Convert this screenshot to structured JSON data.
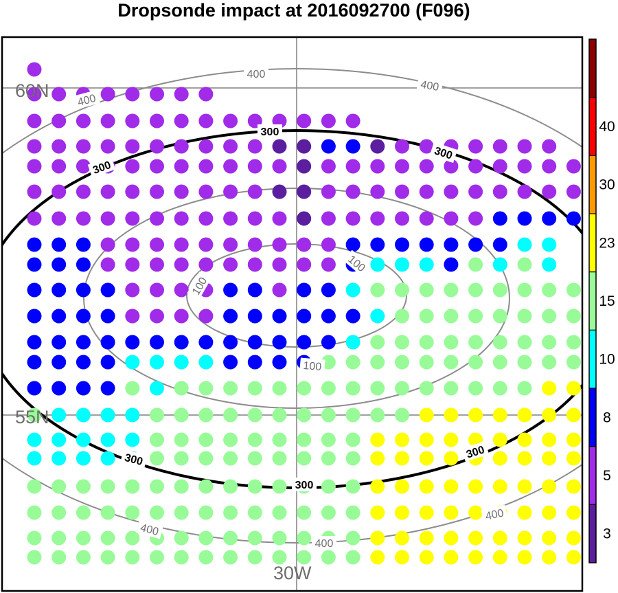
{
  "chart_data": {
    "type": "scatter",
    "title": "Dropsonde impact at 2016092700 (F096)",
    "grid_labels": {
      "lat_60": "60N",
      "lat_55": "55N",
      "lon_30": "30W"
    },
    "contours": [
      {
        "level": "100",
        "color": "#8c8c8c",
        "labels": [
          "100",
          "100",
          "100"
        ]
      },
      {
        "level": "200",
        "color": "#8c8c8c",
        "labels": []
      },
      {
        "level": "300",
        "color": "#000000",
        "labels": [
          "300",
          "300",
          "300",
          "300",
          "300",
          "300"
        ]
      },
      {
        "level": "400",
        "color": "#8c8c8c",
        "labels": [
          "400",
          "400",
          "400",
          "400",
          "400",
          "400"
        ]
      }
    ],
    "colorbar": {
      "labels": [
        "3",
        "5",
        "8",
        "10",
        "15",
        "23",
        "30",
        "40"
      ],
      "colors": [
        "#5a1e9e",
        "#a02be8",
        "#0000ff",
        "#00ffff",
        "#98fb98",
        "#ffff00",
        "#ff9900",
        "#ff0000",
        "#8b0000"
      ]
    },
    "rows": [
      "1",
      "11111111",
      "11111111111111",
      "1111111111002201111111",
      "11111111111011111111111",
      "111111111100111111111111",
      "11111111111011111112222",
      "2221111111111222222233",
      "2221111111111233324343",
      "22221111221223444444444",
      "22221111222222344444444",
      "2222222222222344444444444",
      "22223333222244444444444445",
      "222243444444444444444555",
      "433334444444444455555555555",
      "3333344444444455555555555",
      "3333344444444455555555555",
      "4444444444444455555555555",
      "4444444444444455555555555",
      "444444444444445555555555",
      "444444444444445555555555"
    ]
  }
}
